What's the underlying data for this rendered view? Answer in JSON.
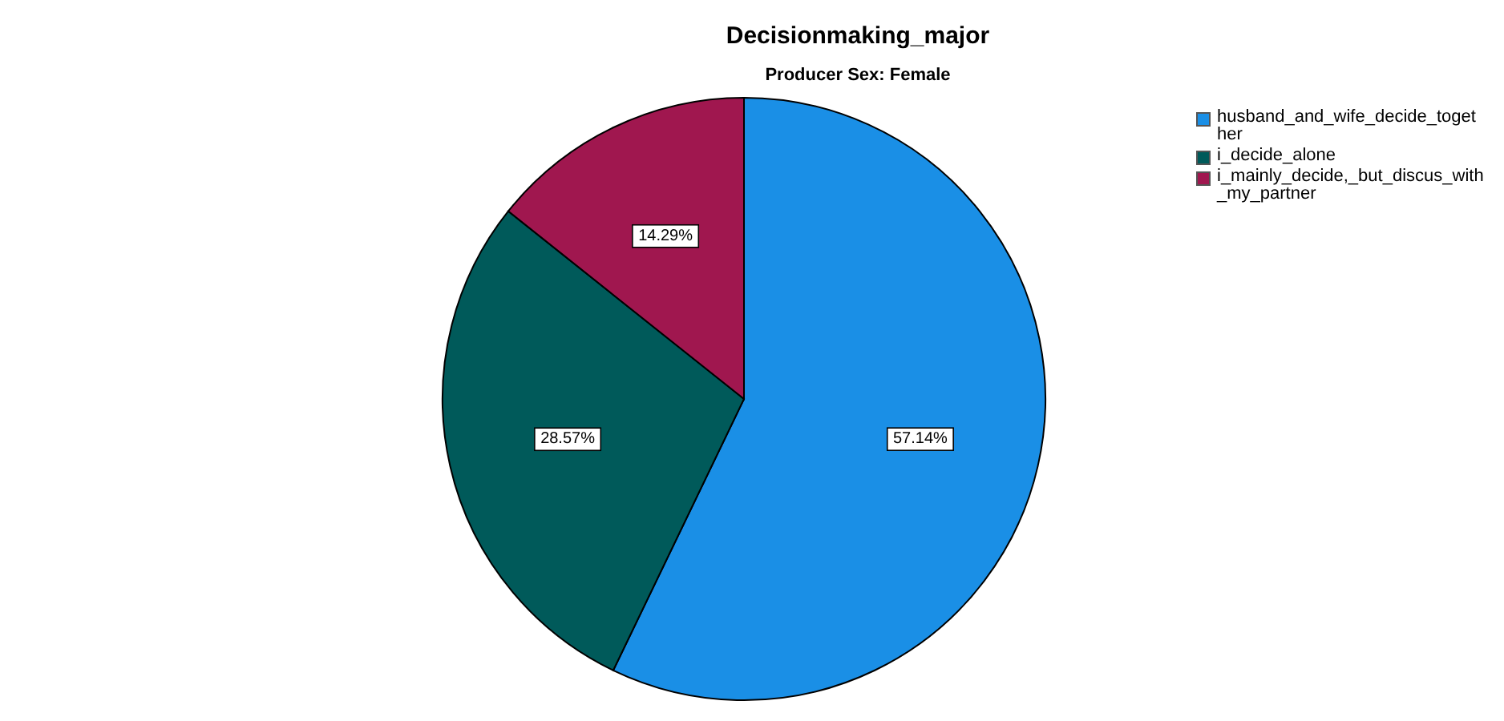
{
  "chart_data": {
    "type": "pie",
    "title": "Decisionmaking_major",
    "subtitle": "Producer Sex: Female",
    "categories": [
      "husband_and_wife_decide_together",
      "i_decide_alone",
      "i_mainly_decide,_but_discus_with_my_partner"
    ],
    "values": [
      57.14,
      28.57,
      14.29
    ],
    "colors": [
      "#1a8fe6",
      "#005a5a",
      "#a0174f"
    ],
    "value_labels": [
      "57.14%",
      "28.57%",
      "14.29%"
    ],
    "legend": "right"
  }
}
